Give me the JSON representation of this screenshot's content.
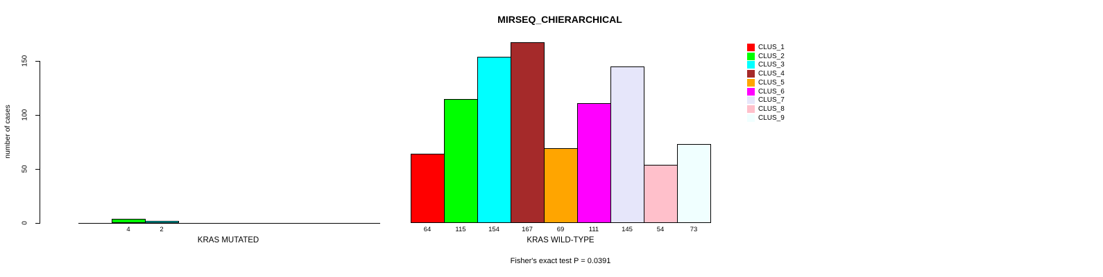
{
  "chart_data": {
    "type": "bar",
    "title": "MIRSEQ_CHIERARCHICAL",
    "ylabel": "number of cases",
    "yticks": [
      0,
      50,
      100,
      150
    ],
    "ylim": [
      0,
      167
    ],
    "grid": false,
    "legend_position": "right",
    "categories": [
      "CLUS_1",
      "CLUS_2",
      "CLUS_3",
      "CLUS_4",
      "CLUS_5",
      "CLUS_6",
      "CLUS_7",
      "CLUS_8",
      "CLUS_9"
    ],
    "colors": [
      "#ff0000",
      "#00ff00",
      "#00ffff",
      "#a52a2a",
      "#ffa500",
      "#ff00ff",
      "#e6e6fa",
      "#ffc0cb",
      "#f0ffff"
    ],
    "groups": [
      {
        "label": "KRAS MUTATED",
        "values": [
          0,
          4,
          2,
          0,
          0,
          0,
          0,
          0,
          0
        ]
      },
      {
        "label": "KRAS WILD-TYPE",
        "values": [
          64,
          115,
          154,
          167,
          69,
          111,
          145,
          54,
          73
        ]
      }
    ],
    "caption": "Fisher's exact test P = 0.0391"
  }
}
